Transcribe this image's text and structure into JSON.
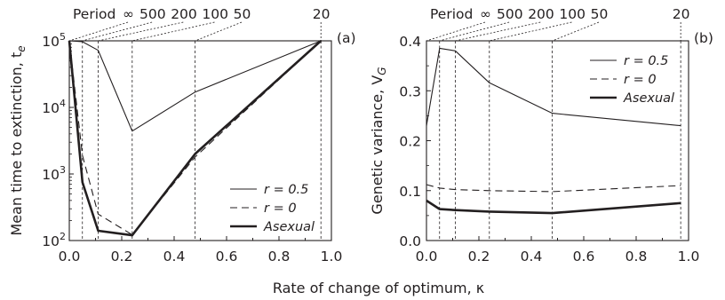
{
  "x_label": "Rate of change of optimum, κ",
  "chart_data": [
    {
      "type": "line",
      "panel": "(a)",
      "ylabel": "Mean time to extinction, t",
      "ylabel_sub": "e",
      "xlim": [
        0,
        1.0
      ],
      "x_ticks": [
        "0.0",
        "0.2",
        "0.4",
        "0.6",
        "0.8",
        "1.0"
      ],
      "y_scale": "log",
      "ylim": [
        100,
        100000
      ],
      "y_ticks": [
        {
          "value": 100,
          "base": "10",
          "exp": "2"
        },
        {
          "value": 1000,
          "base": "10",
          "exp": "3"
        },
        {
          "value": 10000,
          "base": "10",
          "exp": "4"
        },
        {
          "value": 100000,
          "base": "10",
          "exp": "5"
        }
      ],
      "period_label": "Period",
      "periods": [
        {
          "label": "∞",
          "k": 0.0
        },
        {
          "label": "500",
          "k": 0.05
        },
        {
          "label": "200",
          "k": 0.11
        },
        {
          "label": "100",
          "k": 0.24
        },
        {
          "label": "50",
          "k": 0.48
        },
        {
          "label": "20",
          "k": 0.96
        }
      ],
      "legend_placement": "lower-right",
      "series": [
        {
          "name": "r = 0.5",
          "style": "solid-thin",
          "x": [
            0.0,
            0.05,
            0.11,
            0.24,
            0.48,
            0.96
          ],
          "y": [
            100000,
            97000,
            72000,
            4400,
            17000,
            100000
          ]
        },
        {
          "name": "r = 0",
          "style": "dashed",
          "x": [
            0.0,
            0.05,
            0.11,
            0.24,
            0.48,
            0.96
          ],
          "y": [
            100000,
            1900,
            250,
            122,
            1800,
            100000
          ]
        },
        {
          "name": "Asexual",
          "style": "solid-thick",
          "x": [
            0.0,
            0.05,
            0.11,
            0.24,
            0.48,
            0.96
          ],
          "y": [
            100000,
            750,
            140,
            120,
            2000,
            100000
          ]
        }
      ]
    },
    {
      "type": "line",
      "panel": "(b)",
      "ylabel": "Genetic variance, V",
      "ylabel_sub": "G",
      "xlim": [
        0,
        1.0
      ],
      "x_ticks": [
        "0.0",
        "0.2",
        "0.4",
        "0.6",
        "0.8",
        "1.0"
      ],
      "y_scale": "linear",
      "ylim": [
        0,
        0.4
      ],
      "y_ticks": [
        {
          "value": 0.0,
          "label": "0.0"
        },
        {
          "value": 0.1,
          "label": "0.1"
        },
        {
          "value": 0.2,
          "label": "0.2"
        },
        {
          "value": 0.3,
          "label": "0.3"
        },
        {
          "value": 0.4,
          "label": "0.4"
        }
      ],
      "period_label": "Period",
      "periods": [
        {
          "label": "∞",
          "k": 0.0
        },
        {
          "label": "500",
          "k": 0.05
        },
        {
          "label": "200",
          "k": 0.11
        },
        {
          "label": "100",
          "k": 0.24
        },
        {
          "label": "50",
          "k": 0.48
        },
        {
          "label": "20",
          "k": 0.97
        }
      ],
      "legend_placement": "top-right",
      "series": [
        {
          "name": "r = 0.5",
          "style": "solid-thin",
          "x": [
            0.0,
            0.05,
            0.11,
            0.24,
            0.48,
            0.97
          ],
          "y": [
            0.23,
            0.385,
            0.38,
            0.316,
            0.255,
            0.23
          ]
        },
        {
          "name": "r = 0",
          "style": "dashed",
          "x": [
            0.0,
            0.05,
            0.11,
            0.24,
            0.48,
            0.97
          ],
          "y": [
            0.112,
            0.105,
            0.102,
            0.1,
            0.098,
            0.11
          ]
        },
        {
          "name": "Asexual",
          "style": "solid-thick",
          "x": [
            0.0,
            0.05,
            0.11,
            0.24,
            0.48,
            0.97
          ],
          "y": [
            0.08,
            0.063,
            0.061,
            0.058,
            0.055,
            0.075
          ]
        }
      ]
    }
  ]
}
